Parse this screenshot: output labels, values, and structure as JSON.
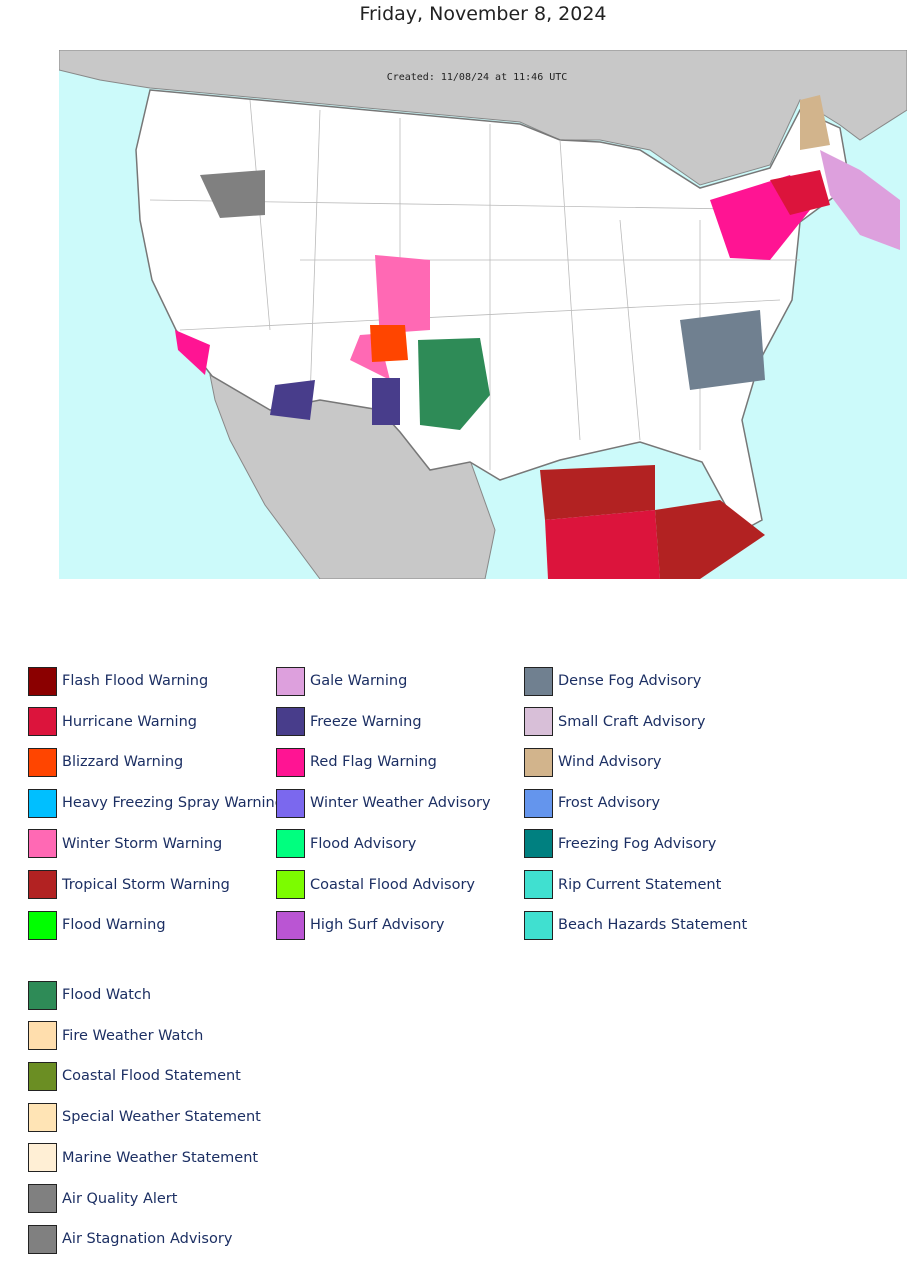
{
  "title": "Friday, November 8, 2024",
  "map": {
    "created": "Created: 11/08/24 at 11:46 UTC"
  },
  "legend": {
    "groups": [
      [
        {
          "label": "Flash Flood Warning",
          "color": "#8b0000"
        },
        {
          "label": "Hurricane Warning",
          "color": "#dc143c"
        },
        {
          "label": "Blizzard Warning",
          "color": "#ff4500"
        },
        {
          "label": "Heavy Freezing Spray Warning",
          "color": "#00bfff"
        },
        {
          "label": "Winter Storm Warning",
          "color": "#ff69b4"
        },
        {
          "label": "Tropical Storm Warning",
          "color": "#b22222"
        },
        {
          "label": "Flood Warning",
          "color": "#00ff00"
        },
        {
          "label": "Gale Warning",
          "color": "#dda0dd"
        },
        {
          "label": "Freeze Warning",
          "color": "#483d8b"
        },
        {
          "label": "Red Flag Warning",
          "color": "#ff1493"
        },
        {
          "label": "Winter Weather Advisory",
          "color": "#7b68ee"
        },
        {
          "label": "Flood Advisory",
          "color": "#00ff7f"
        },
        {
          "label": "Coastal Flood Advisory",
          "color": "#7cfc00"
        },
        {
          "label": "High Surf Advisory",
          "color": "#ba55d3"
        },
        {
          "label": "Dense Fog Advisory",
          "color": "#708090"
        },
        {
          "label": "Small Craft Advisory",
          "color": "#d8bfd8"
        },
        {
          "label": "Wind Advisory",
          "color": "#d2b48c"
        },
        {
          "label": "Frost Advisory",
          "color": "#6495ed"
        },
        {
          "label": "Freezing Fog Advisory",
          "color": "#008080"
        },
        {
          "label": "Rip Current Statement",
          "color": "#40e0d0"
        },
        {
          "label": "Beach Hazards Statement",
          "color": "#40e0d0"
        }
      ],
      [
        {
          "label": "Flood Watch",
          "color": "#2e8b57"
        },
        {
          "label": "Fire Weather Watch",
          "color": "#ffdead"
        },
        {
          "label": "Coastal Flood Statement",
          "color": "#6b8e23"
        },
        {
          "label": "Special Weather Statement",
          "color": "#ffe4b5"
        },
        {
          "label": "Marine Weather Statement",
          "color": "#ffefd5"
        },
        {
          "label": "Air Quality Alert",
          "color": "#808080"
        },
        {
          "label": "Air Stagnation Advisory",
          "color": "#808080"
        }
      ]
    ]
  }
}
